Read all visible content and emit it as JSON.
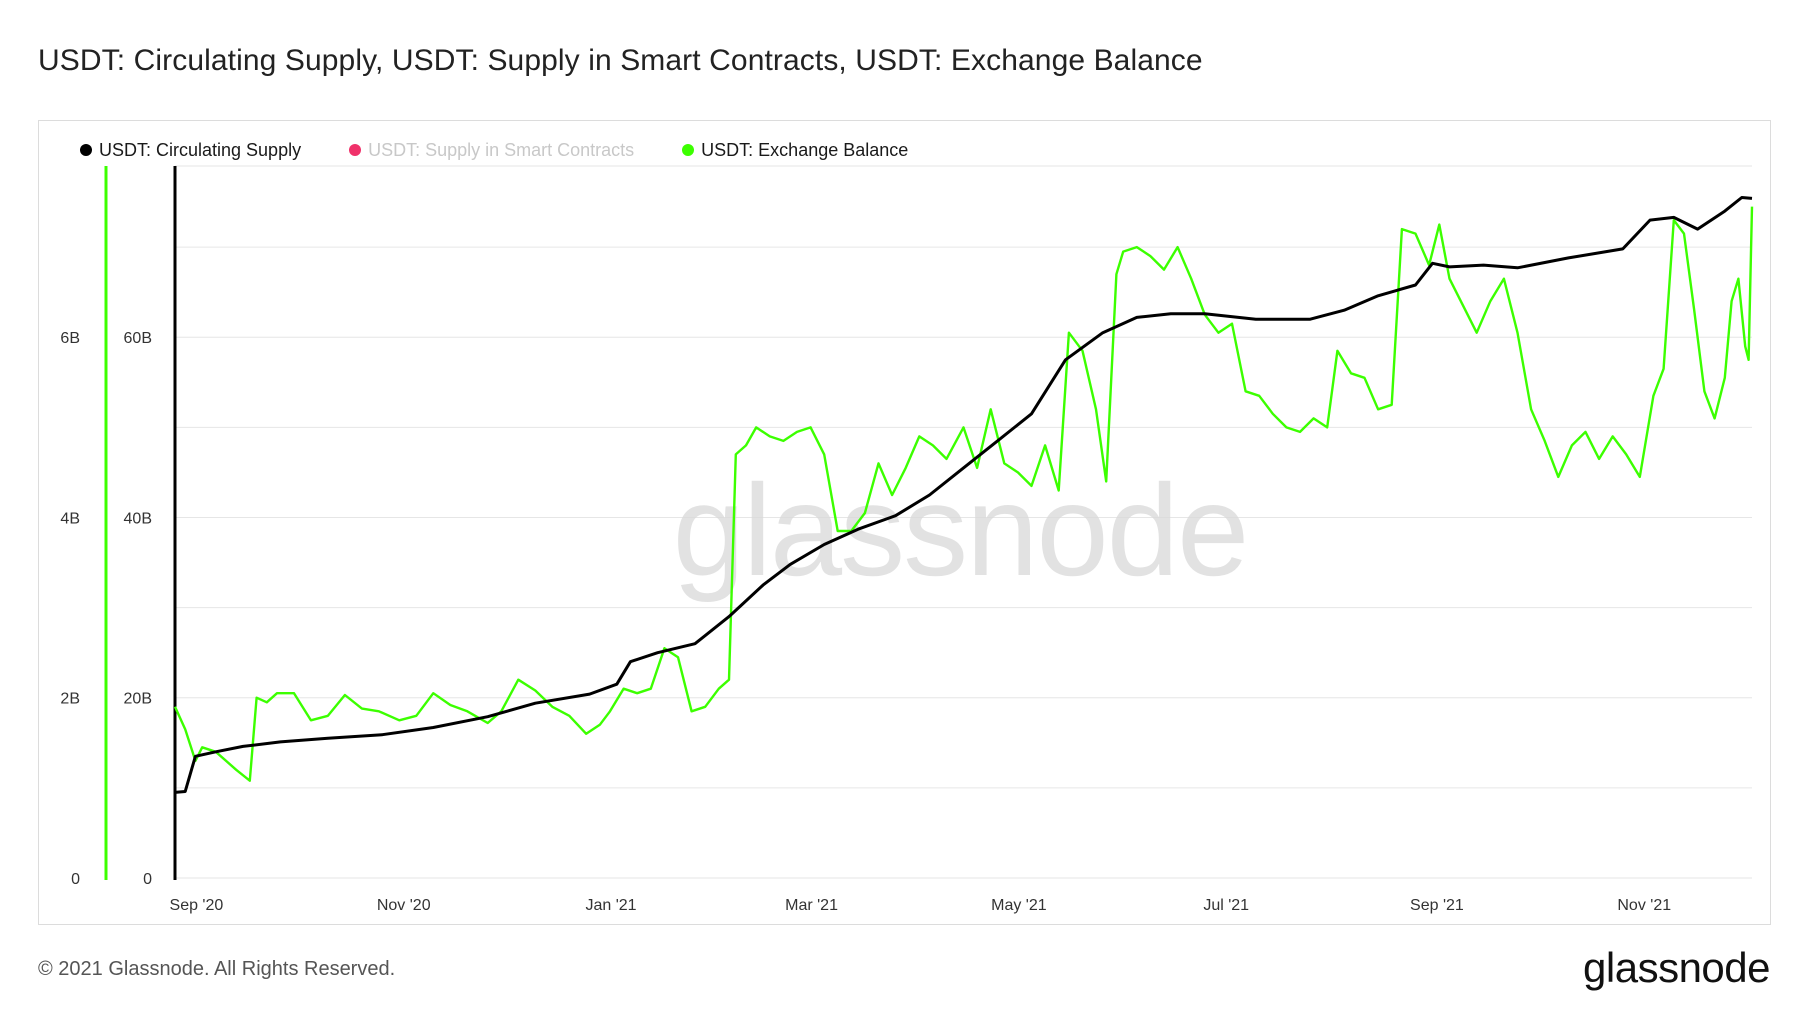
{
  "title": "USDT: Circulating Supply, USDT: Supply in Smart Contracts, USDT: Exchange Balance",
  "footer": {
    "copyright": "© 2021 Glassnode. All Rights Reserved.",
    "logo": "glassnode"
  },
  "watermark": "glassnode",
  "colors": {
    "circulating": "#000000",
    "smart_contracts": "#f0316a",
    "exchange": "#3cff00",
    "grid": "#e6e6e6"
  },
  "chart_data": {
    "type": "line",
    "title": "USDT: Circulating Supply, USDT: Supply in Smart Contracts, USDT: Exchange Balance",
    "legend_position": "top-left",
    "grid": true,
    "x_ticks": [
      "Sep '20",
      "Nov '20",
      "Jan '21",
      "Mar '21",
      "May '21",
      "Jul '21",
      "Sep '21",
      "Nov '21"
    ],
    "x_range": [
      "2020-08-31",
      "2021-12-08"
    ],
    "y_axes": [
      {
        "id": "left",
        "ticks": [
          "0",
          "2B",
          "4B",
          "6B"
        ],
        "tick_values": [
          0,
          2000000000,
          4000000000,
          6000000000
        ],
        "range": [
          0,
          7900000000
        ]
      },
      {
        "id": "right",
        "ticks": [
          "0",
          "20B",
          "40B",
          "60B"
        ],
        "tick_values": [
          0,
          20000000000,
          40000000000,
          60000000000
        ],
        "range": [
          0,
          79000000000
        ]
      }
    ],
    "series": [
      {
        "name": "USDT: Circulating Supply",
        "axis": "right",
        "color": "#000000",
        "visible": true,
        "points": [
          [
            "2020-08-31",
            9.5
          ],
          [
            "2020-09-03",
            9.6
          ],
          [
            "2020-09-06",
            13.5
          ],
          [
            "2020-09-12",
            14.0
          ],
          [
            "2020-09-20",
            14.6
          ],
          [
            "2020-10-01",
            15.1
          ],
          [
            "2020-10-15",
            15.5
          ],
          [
            "2020-10-31",
            15.9
          ],
          [
            "2020-11-15",
            16.7
          ],
          [
            "2020-12-01",
            17.9
          ],
          [
            "2020-12-15",
            19.4
          ],
          [
            "2020-12-31",
            20.4
          ],
          [
            "2021-01-08",
            21.5
          ],
          [
            "2021-01-12",
            24.0
          ],
          [
            "2021-01-20",
            25.0
          ],
          [
            "2021-01-31",
            26.0
          ],
          [
            "2021-02-10",
            29.0
          ],
          [
            "2021-02-20",
            32.5
          ],
          [
            "2021-02-28",
            34.8
          ],
          [
            "2021-03-10",
            37.0
          ],
          [
            "2021-03-20",
            38.7
          ],
          [
            "2021-03-31",
            40.2
          ],
          [
            "2021-04-10",
            42.5
          ],
          [
            "2021-04-20",
            45.5
          ],
          [
            "2021-04-30",
            48.5
          ],
          [
            "2021-05-10",
            51.5
          ],
          [
            "2021-05-20",
            57.5
          ],
          [
            "2021-05-31",
            60.5
          ],
          [
            "2021-06-10",
            62.2
          ],
          [
            "2021-06-20",
            62.6
          ],
          [
            "2021-06-30",
            62.6
          ],
          [
            "2021-07-15",
            62.0
          ],
          [
            "2021-07-31",
            62.0
          ],
          [
            "2021-08-10",
            63.0
          ],
          [
            "2021-08-20",
            64.6
          ],
          [
            "2021-08-31",
            65.8
          ],
          [
            "2021-09-05",
            68.2
          ],
          [
            "2021-09-10",
            67.8
          ],
          [
            "2021-09-20",
            68.0
          ],
          [
            "2021-09-30",
            67.7
          ],
          [
            "2021-10-15",
            68.8
          ],
          [
            "2021-10-31",
            69.8
          ],
          [
            "2021-11-08",
            73.0
          ],
          [
            "2021-11-15",
            73.3
          ],
          [
            "2021-11-22",
            72.0
          ],
          [
            "2021-11-30",
            74.0
          ],
          [
            "2021-12-05",
            75.5
          ],
          [
            "2021-12-08",
            75.4
          ]
        ]
      },
      {
        "name": "USDT: Supply in Smart Contracts",
        "axis": "left",
        "color": "#f0316a",
        "visible": false,
        "points": []
      },
      {
        "name": "USDT: Exchange Balance",
        "axis": "right",
        "color": "#3cff00",
        "visible": true,
        "points": [
          [
            "2020-08-31",
            19.0
          ],
          [
            "2020-09-03",
            16.5
          ],
          [
            "2020-09-06",
            13.0
          ],
          [
            "2020-09-08",
            14.5
          ],
          [
            "2020-09-12",
            14.0
          ],
          [
            "2020-09-18",
            12.0
          ],
          [
            "2020-09-22",
            10.8
          ],
          [
            "2020-09-24",
            20.0
          ],
          [
            "2020-09-27",
            19.5
          ],
          [
            "2020-09-30",
            20.5
          ],
          [
            "2020-10-05",
            20.5
          ],
          [
            "2020-10-10",
            17.5
          ],
          [
            "2020-10-15",
            18.0
          ],
          [
            "2020-10-20",
            20.3
          ],
          [
            "2020-10-25",
            18.8
          ],
          [
            "2020-10-30",
            18.5
          ],
          [
            "2020-11-05",
            17.5
          ],
          [
            "2020-11-10",
            18.0
          ],
          [
            "2020-11-15",
            20.5
          ],
          [
            "2020-11-20",
            19.2
          ],
          [
            "2020-11-25",
            18.5
          ],
          [
            "2020-12-01",
            17.2
          ],
          [
            "2020-12-05",
            18.5
          ],
          [
            "2020-12-10",
            22.0
          ],
          [
            "2020-12-15",
            20.8
          ],
          [
            "2020-12-20",
            19.0
          ],
          [
            "2020-12-25",
            18.0
          ],
          [
            "2020-12-30",
            16.0
          ],
          [
            "2021-01-03",
            17.0
          ],
          [
            "2021-01-06",
            18.5
          ],
          [
            "2021-01-10",
            21.0
          ],
          [
            "2021-01-14",
            20.5
          ],
          [
            "2021-01-18",
            21.0
          ],
          [
            "2021-01-22",
            25.5
          ],
          [
            "2021-01-26",
            24.5
          ],
          [
            "2021-01-30",
            18.5
          ],
          [
            "2021-02-03",
            19.0
          ],
          [
            "2021-02-07",
            21.0
          ],
          [
            "2021-02-10",
            22.0
          ],
          [
            "2021-02-12",
            47.0
          ],
          [
            "2021-02-15",
            48.0
          ],
          [
            "2021-02-18",
            50.0
          ],
          [
            "2021-02-22",
            49.0
          ],
          [
            "2021-02-26",
            48.5
          ],
          [
            "2021-03-02",
            49.5
          ],
          [
            "2021-03-06",
            50.0
          ],
          [
            "2021-03-10",
            47.0
          ],
          [
            "2021-03-14",
            38.5
          ],
          [
            "2021-03-18",
            38.5
          ],
          [
            "2021-03-22",
            40.5
          ],
          [
            "2021-03-26",
            46.0
          ],
          [
            "2021-03-30",
            42.5
          ],
          [
            "2021-04-03",
            45.5
          ],
          [
            "2021-04-07",
            49.0
          ],
          [
            "2021-04-11",
            48.0
          ],
          [
            "2021-04-15",
            46.5
          ],
          [
            "2021-04-20",
            50.0
          ],
          [
            "2021-04-24",
            45.5
          ],
          [
            "2021-04-28",
            52.0
          ],
          [
            "2021-05-02",
            46.0
          ],
          [
            "2021-05-06",
            45.0
          ],
          [
            "2021-05-10",
            43.5
          ],
          [
            "2021-05-14",
            48.0
          ],
          [
            "2021-05-18",
            43.0
          ],
          [
            "2021-05-21",
            60.5
          ],
          [
            "2021-05-25",
            58.5
          ],
          [
            "2021-05-29",
            52.0
          ],
          [
            "2021-06-01",
            44.0
          ],
          [
            "2021-06-04",
            67.0
          ],
          [
            "2021-06-06",
            69.5
          ],
          [
            "2021-06-10",
            70.0
          ],
          [
            "2021-06-14",
            69.0
          ],
          [
            "2021-06-18",
            67.5
          ],
          [
            "2021-06-22",
            70.0
          ],
          [
            "2021-06-26",
            66.5
          ],
          [
            "2021-06-30",
            62.5
          ],
          [
            "2021-07-04",
            60.5
          ],
          [
            "2021-07-08",
            61.5
          ],
          [
            "2021-07-12",
            54.0
          ],
          [
            "2021-07-16",
            53.5
          ],
          [
            "2021-07-20",
            51.5
          ],
          [
            "2021-07-24",
            50.0
          ],
          [
            "2021-07-28",
            49.5
          ],
          [
            "2021-08-01",
            51.0
          ],
          [
            "2021-08-05",
            50.0
          ],
          [
            "2021-08-08",
            58.5
          ],
          [
            "2021-08-12",
            56.0
          ],
          [
            "2021-08-16",
            55.5
          ],
          [
            "2021-08-20",
            52.0
          ],
          [
            "2021-08-24",
            52.5
          ],
          [
            "2021-08-27",
            72.0
          ],
          [
            "2021-08-31",
            71.5
          ],
          [
            "2021-09-04",
            68.0
          ],
          [
            "2021-09-07",
            72.5
          ],
          [
            "2021-09-10",
            66.5
          ],
          [
            "2021-09-14",
            63.5
          ],
          [
            "2021-09-18",
            60.5
          ],
          [
            "2021-09-22",
            64.0
          ],
          [
            "2021-09-26",
            66.5
          ],
          [
            "2021-09-30",
            60.5
          ],
          [
            "2021-10-04",
            52.0
          ],
          [
            "2021-10-08",
            48.5
          ],
          [
            "2021-10-12",
            44.5
          ],
          [
            "2021-10-16",
            48.0
          ],
          [
            "2021-10-20",
            49.5
          ],
          [
            "2021-10-24",
            46.5
          ],
          [
            "2021-10-28",
            49.0
          ],
          [
            "2021-11-01",
            47.0
          ],
          [
            "2021-11-05",
            44.5
          ],
          [
            "2021-11-09",
            53.5
          ],
          [
            "2021-11-12",
            56.5
          ],
          [
            "2021-11-15",
            73.0
          ],
          [
            "2021-11-18",
            71.5
          ],
          [
            "2021-11-21",
            63.0
          ],
          [
            "2021-11-24",
            54.0
          ],
          [
            "2021-11-27",
            51.0
          ],
          [
            "2021-11-30",
            55.5
          ],
          [
            "2021-12-02",
            64.0
          ],
          [
            "2021-12-04",
            66.5
          ],
          [
            "2021-12-06",
            59.0
          ],
          [
            "2021-12-07",
            57.5
          ],
          [
            "2021-12-08",
            74.5
          ]
        ]
      }
    ]
  }
}
